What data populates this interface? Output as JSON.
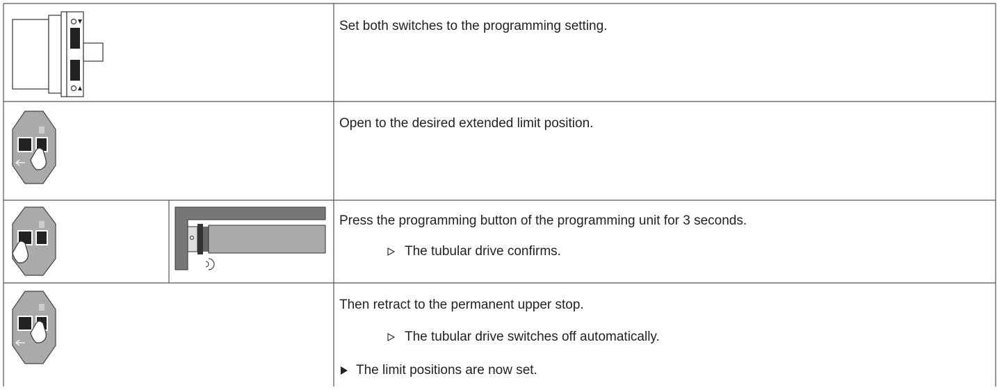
{
  "table": {
    "rows": [
      {
        "instruction": "Set both switches to the programming setting."
      },
      {
        "instruction": "Open to the desired extended limit position."
      },
      {
        "instruction": "Press the programming button of the programming unit for 3 seconds.",
        "result": "The tubular drive confirms."
      },
      {
        "instruction": "Then retract to the permanent upper stop.",
        "result": "The tubular drive switches off automatically.",
        "outcome": "The limit positions are now set."
      }
    ]
  }
}
